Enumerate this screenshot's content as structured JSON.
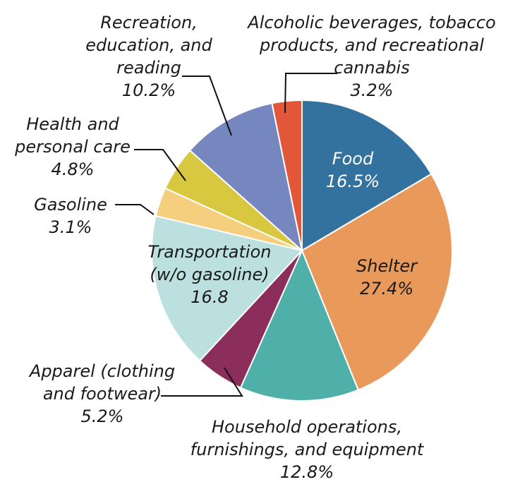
{
  "chart_data": {
    "type": "pie",
    "title": "",
    "unit": "%",
    "start_angle_deg": 0,
    "direction": "clockwise",
    "slices": [
      {
        "key": "food",
        "name": "Food",
        "value": 16.5,
        "label_lines": [
          "Food",
          "16.5%"
        ],
        "color": "#33719f",
        "text_color": "#ffffff"
      },
      {
        "key": "shelter",
        "name": "Shelter",
        "value": 27.4,
        "label_lines": [
          "Shelter",
          "27.4%"
        ],
        "color": "#e99a5a",
        "text_color": "#1a1a1a"
      },
      {
        "key": "household",
        "name": "Household operations, furnishings, and equipment",
        "value": 12.8,
        "label_lines": [
          "Household operations,",
          "furnishings, and equipment",
          "12.8%"
        ],
        "color": "#4fb0aa",
        "text_color": "#1a1a1a"
      },
      {
        "key": "apparel",
        "name": "Apparel (clothing and footwear)",
        "value": 5.2,
        "label_lines": [
          "Apparel (clothing",
          "and footwear)",
          "5.2%"
        ],
        "color": "#8b2e5c",
        "text_color": "#1a1a1a"
      },
      {
        "key": "transportation",
        "name": "Transportation (w/o gasoline)",
        "value": 16.8,
        "label_lines": [
          "Transportation",
          "(w/o gasoline)",
          "16.8"
        ],
        "color": "#bbe0df",
        "text_color": "#1a1a1a"
      },
      {
        "key": "gasoline",
        "name": "Gasoline",
        "value": 3.1,
        "label_lines": [
          "Gasoline",
          "3.1%"
        ],
        "color": "#f6cf7e",
        "text_color": "#1a1a1a"
      },
      {
        "key": "health",
        "name": "Health and personal care",
        "value": 4.8,
        "label_lines": [
          "Health and",
          "personal care",
          "4.8%"
        ],
        "color": "#d8c83f",
        "text_color": "#1a1a1a"
      },
      {
        "key": "recreation",
        "name": "Recreation, education, and reading",
        "value": 10.2,
        "label_lines": [
          "Recreation,",
          "education, and",
          "reading",
          "10.2%"
        ],
        "color": "#7687c0",
        "text_color": "#1a1a1a"
      },
      {
        "key": "alcohol",
        "name": "Alcoholic beverages, tobacco products, and recreational cannabis",
        "value": 3.2,
        "label_lines": [
          "Alcoholic beverages, tobacco",
          "products, and recreational",
          "cannabis",
          "3.2%"
        ],
        "color": "#e2573a",
        "text_color": "#1a1a1a"
      }
    ]
  }
}
